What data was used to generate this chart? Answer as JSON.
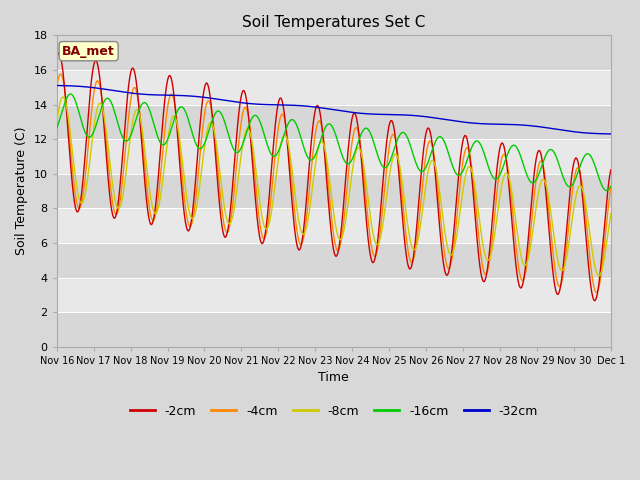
{
  "title": "Soil Temperatures Set C",
  "xlabel": "Time",
  "ylabel": "Soil Temperature (C)",
  "ylim": [
    0,
    18
  ],
  "yticks": [
    0,
    2,
    4,
    6,
    8,
    10,
    12,
    14,
    16,
    18
  ],
  "xlabels": [
    "Nov 16",
    "Nov 17",
    "Nov 18",
    "Nov 19",
    "Nov 20",
    "Nov 21",
    "Nov 22",
    "Nov 23",
    "Nov 24",
    "Nov 25",
    "Nov 26",
    "Nov 27",
    "Nov 28",
    "Nov 29",
    "Nov 30",
    "Dec 1"
  ],
  "annotation_text": "BA_met",
  "legend_labels": [
    "-2cm",
    "-4cm",
    "-8cm",
    "-16cm",
    "-32cm"
  ],
  "legend_colors": [
    "#cc0000",
    "#ff8800",
    "#cccc00",
    "#00cc00",
    "#0000cc"
  ],
  "line_colors": {
    "d2cm": "#cc0000",
    "d4cm": "#ff8800",
    "d8cm": "#cccc00",
    "d16cm": "#00cc00",
    "d32cm": "#0000cc"
  },
  "bg_color": "#d8d8d8",
  "plot_bg": "#e8e8e8",
  "grid_color": "#ffffff",
  "n_days": 15,
  "n_pts": 1800
}
